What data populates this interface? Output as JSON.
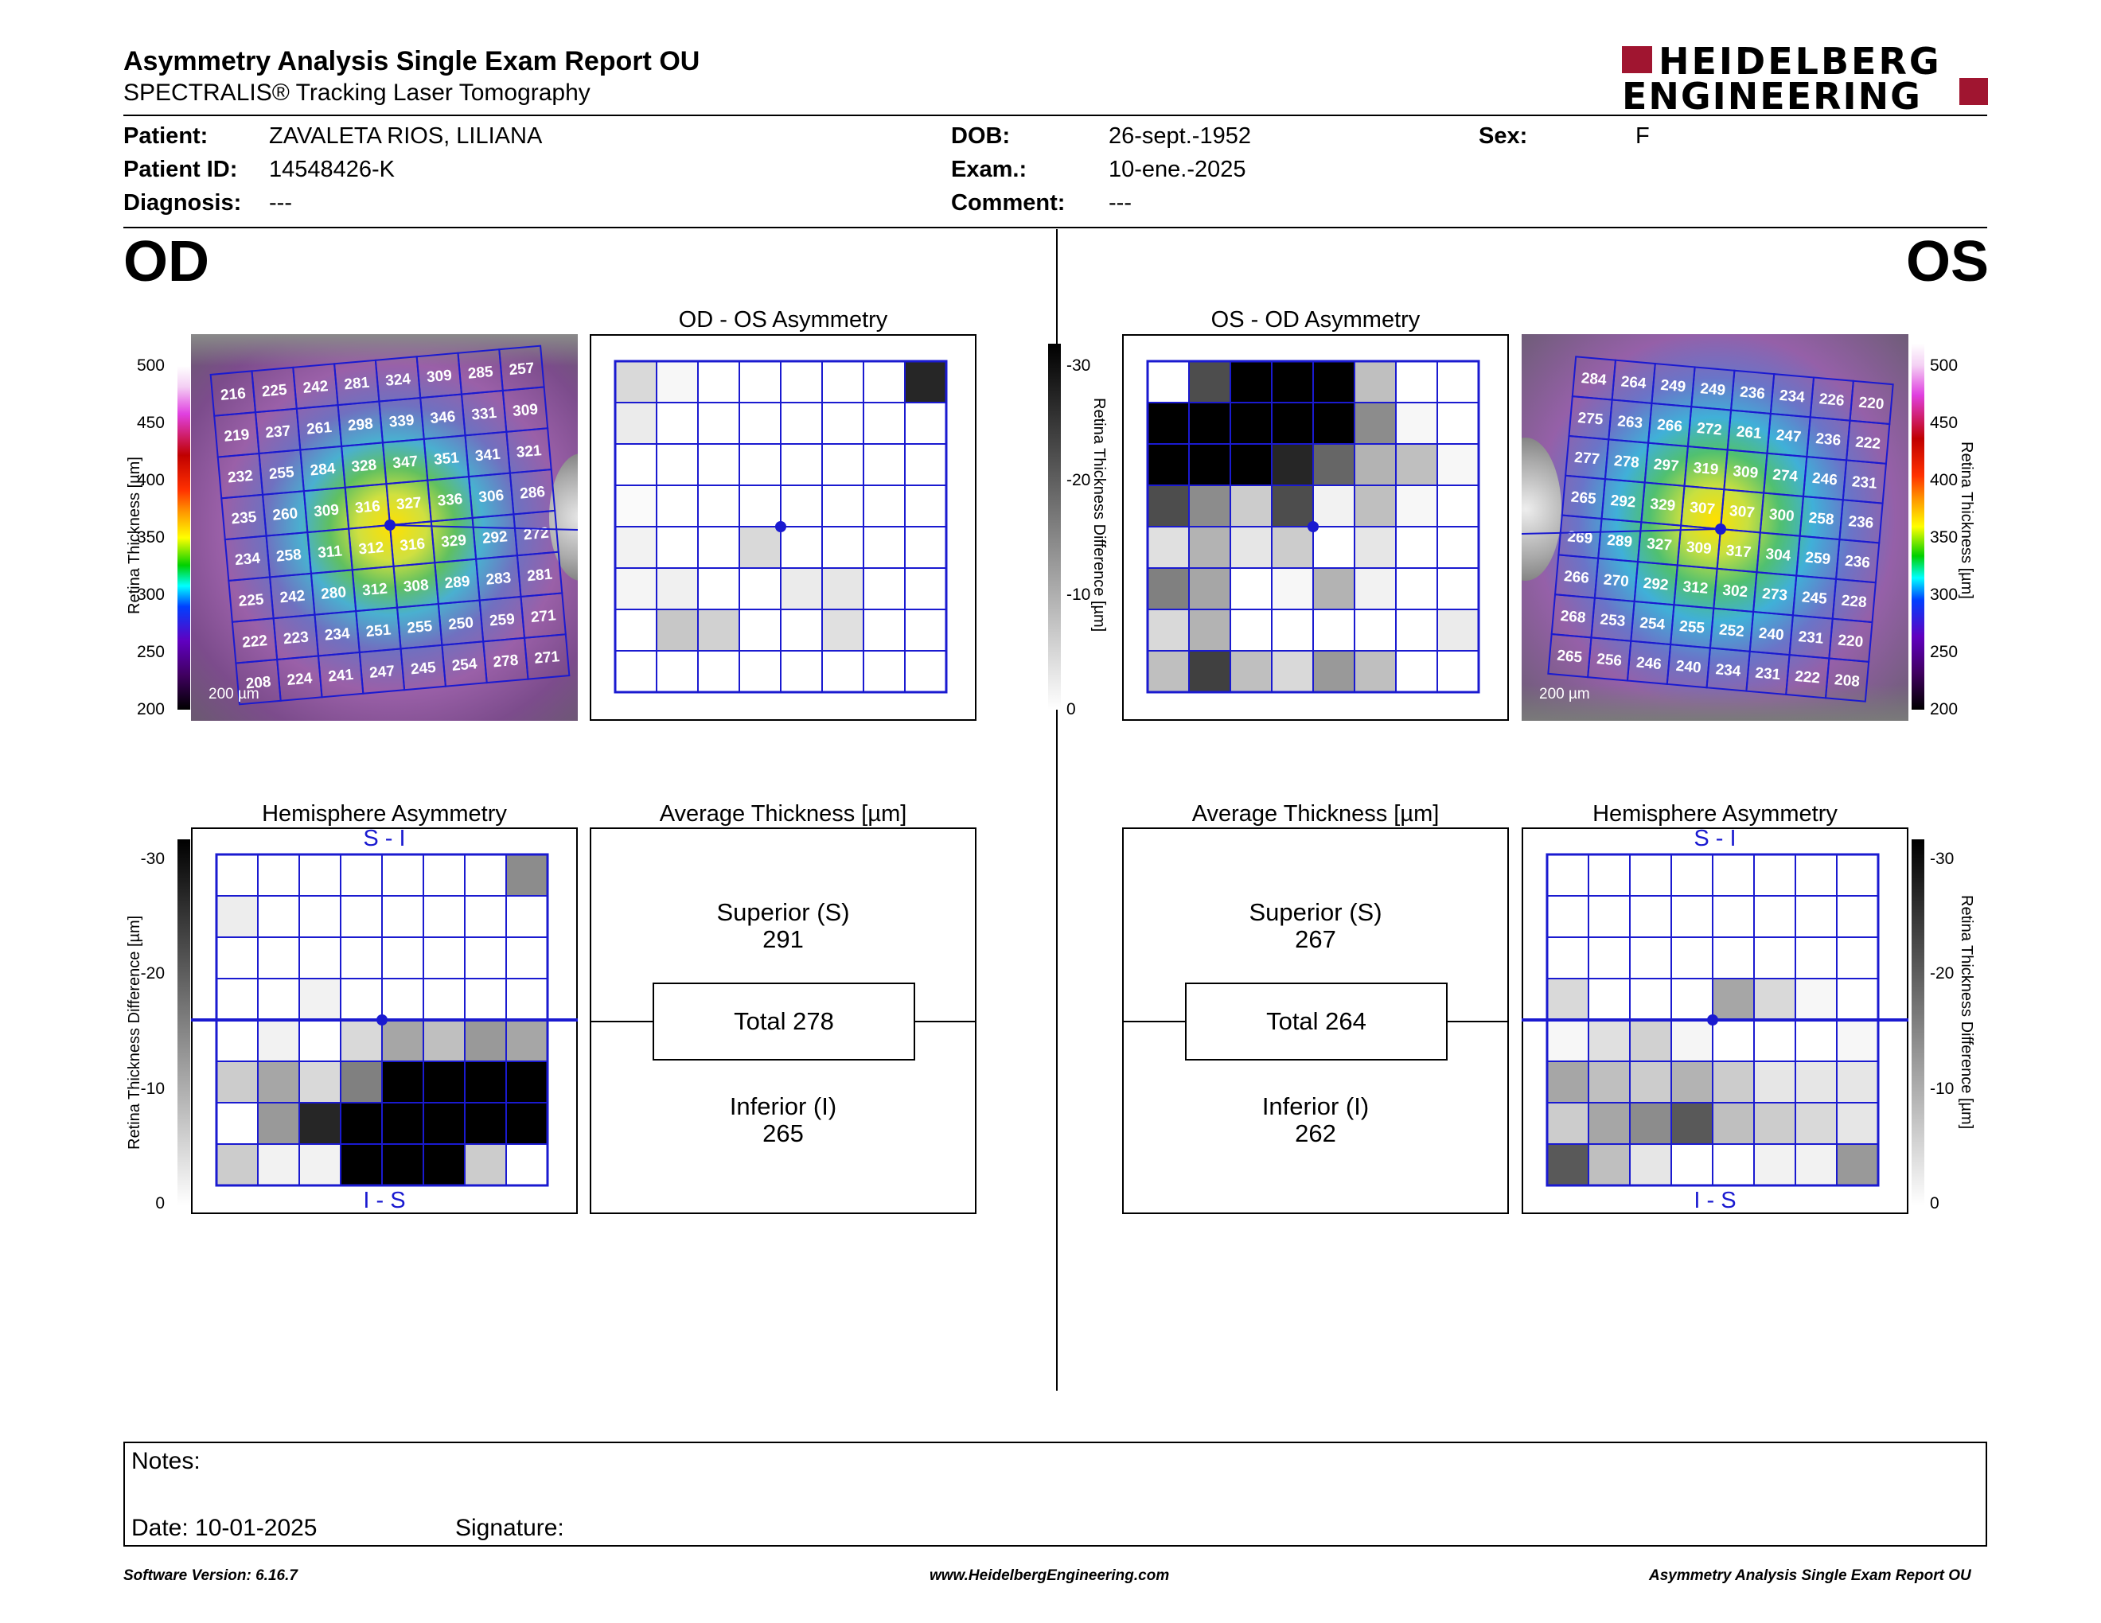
{
  "header": {
    "title": "Asymmetry Analysis Single Exam Report OU",
    "subtitle": "SPECTRALIS® Tracking Laser Tomography",
    "logo_line1": "HEIDELBERG",
    "logo_line2": "ENGINEERING",
    "logo_color": "#a01530"
  },
  "patient": {
    "patient_label": "Patient:",
    "patient_value": "ZAVALETA RIOS, LILIANA",
    "id_label": "Patient ID:",
    "id_value": "14548426-K",
    "diagnosis_label": "Diagnosis:",
    "diagnosis_value": "---",
    "dob_label": "DOB:",
    "dob_value": "26-sept.-1952",
    "exam_label": "Exam.:",
    "exam_value": "10-ene.-2025",
    "comment_label": "Comment:",
    "comment_value": "---",
    "sex_label": "Sex:",
    "sex_value": "F"
  },
  "od": {
    "eye_label": "OD",
    "asym_title": "OD - OS Asymmetry",
    "hemi_title": "Hemisphere Asymmetry",
    "avg_title": "Average Thickness [µm]",
    "superior_label": "Superior (S)",
    "superior_value": "291",
    "total_label": "Total 278",
    "inferior_label": "Inferior (I)",
    "inferior_value": "265",
    "hemi_top": "S - I",
    "hemi_bottom": "I - S",
    "scale_label": "200 µm",
    "thickness_grid": [
      [
        216,
        225,
        242,
        281,
        324,
        309,
        285,
        257
      ],
      [
        219,
        237,
        261,
        298,
        339,
        346,
        331,
        309
      ],
      [
        232,
        255,
        284,
        328,
        347,
        351,
        341,
        321
      ],
      [
        235,
        260,
        309,
        316,
        327,
        336,
        306,
        286
      ],
      [
        234,
        258,
        311,
        312,
        316,
        329,
        292,
        272
      ],
      [
        225,
        242,
        280,
        312,
        308,
        289,
        283,
        281
      ],
      [
        222,
        223,
        234,
        251,
        255,
        250,
        259,
        271
      ],
      [
        208,
        224,
        241,
        247,
        245,
        254,
        278,
        271
      ]
    ],
    "asym_grid": [
      [
        0.15,
        0.03,
        0,
        0,
        0,
        0,
        0,
        0.85
      ],
      [
        0.08,
        0,
        0,
        0,
        0,
        0,
        0,
        0
      ],
      [
        0,
        0,
        0,
        0,
        0,
        0,
        0,
        0
      ],
      [
        0.02,
        0,
        0,
        0,
        0,
        0,
        0,
        0
      ],
      [
        0.05,
        0,
        0,
        0.15,
        0,
        0,
        0,
        0
      ],
      [
        0.04,
        0.06,
        0,
        0,
        0.08,
        0.1,
        0,
        0
      ],
      [
        0,
        0.22,
        0.18,
        0,
        0,
        0.12,
        0,
        0
      ],
      [
        0,
        0,
        0,
        0,
        0,
        0,
        0,
        0
      ]
    ],
    "hemi_grid": [
      [
        0,
        0,
        0,
        0,
        0,
        0,
        0,
        0.45
      ],
      [
        0.07,
        0,
        0,
        0,
        0,
        0,
        0,
        0
      ],
      [
        0,
        0,
        0,
        0,
        0,
        0,
        0,
        0
      ],
      [
        0,
        0,
        0.05,
        0,
        0,
        0,
        0,
        0
      ],
      [
        0,
        0.05,
        0,
        0.15,
        0.35,
        0.25,
        0.4,
        0.35
      ],
      [
        0.2,
        0.35,
        0.15,
        0.5,
        1,
        1,
        1,
        1
      ],
      [
        0,
        0.4,
        0.85,
        1,
        1,
        1,
        1,
        1
      ],
      [
        0.2,
        0.05,
        0.05,
        1,
        1,
        1,
        0.2,
        0
      ]
    ]
  },
  "os": {
    "eye_label": "OS",
    "asym_title": "OS - OD Asymmetry",
    "hemi_title": "Hemisphere Asymmetry",
    "avg_title": "Average Thickness [µm]",
    "superior_label": "Superior (S)",
    "superior_value": "267",
    "total_label": "Total 264",
    "inferior_label": "Inferior (I)",
    "inferior_value": "262",
    "hemi_top": "S - I",
    "hemi_bottom": "I - S",
    "scale_label": "200 µm",
    "thickness_grid": [
      [
        284,
        264,
        249,
        249,
        236,
        234,
        226,
        220
      ],
      [
        275,
        263,
        266,
        272,
        261,
        247,
        236,
        222
      ],
      [
        277,
        278,
        297,
        319,
        309,
        274,
        246,
        231
      ],
      [
        265,
        292,
        329,
        307,
        307,
        300,
        258,
        236
      ],
      [
        269,
        289,
        327,
        309,
        317,
        304,
        259,
        236
      ],
      [
        266,
        270,
        292,
        312,
        302,
        273,
        245,
        228
      ],
      [
        268,
        253,
        254,
        255,
        252,
        240,
        231,
        220
      ],
      [
        265,
        256,
        246,
        240,
        234,
        231,
        222,
        208
      ]
    ],
    "asym_grid": [
      [
        0,
        0.7,
        1,
        1,
        1,
        0.25,
        0,
        0
      ],
      [
        1,
        1,
        1,
        1,
        1,
        0.45,
        0.03,
        0
      ],
      [
        1,
        1,
        1,
        0.85,
        0.6,
        0.3,
        0.25,
        0.03
      ],
      [
        0.7,
        0.45,
        0.2,
        0.7,
        0.05,
        0.25,
        0.03,
        0
      ],
      [
        0.12,
        0.3,
        0.1,
        0.2,
        0,
        0.1,
        0,
        0
      ],
      [
        0.5,
        0.35,
        0,
        0.03,
        0.3,
        0.05,
        0,
        0
      ],
      [
        0.15,
        0.3,
        0,
        0,
        0,
        0,
        0,
        0.08
      ],
      [
        0.25,
        0.75,
        0.25,
        0.15,
        0.4,
        0.25,
        0,
        0
      ]
    ],
    "hemi_grid": [
      [
        0,
        0,
        0,
        0,
        0,
        0,
        0,
        0
      ],
      [
        0,
        0,
        0,
        0,
        0,
        0,
        0,
        0
      ],
      [
        0,
        0,
        0,
        0,
        0,
        0,
        0,
        0
      ],
      [
        0.15,
        0,
        0,
        0,
        0.35,
        0.15,
        0.03,
        0
      ],
      [
        0.03,
        0.12,
        0.18,
        0.04,
        0,
        0,
        0,
        0.03
      ],
      [
        0.35,
        0.25,
        0.2,
        0.3,
        0.2,
        0.1,
        0.1,
        0.1
      ],
      [
        0.2,
        0.35,
        0.45,
        0.65,
        0.25,
        0.2,
        0.15,
        0.1
      ],
      [
        0.65,
        0.25,
        0.1,
        0,
        0,
        0.05,
        0.05,
        0.4
      ]
    ]
  },
  "scales": {
    "thickness_label": "Retina Thickness [µm]",
    "thickness_ticks": [
      "500",
      "450",
      "400",
      "350",
      "300",
      "250",
      "200"
    ],
    "diff_label": "Retina Thickness Difference [µm]",
    "diff_ticks": [
      "-30",
      "-20",
      "-10",
      "0"
    ]
  },
  "notes": {
    "notes_label": "Notes:",
    "date_label": "Date: 10-01-2025",
    "signature_label": "Signature:"
  },
  "footer": {
    "version": "Software Version: 6.16.7",
    "website": "www.HeidelbergEngineering.com",
    "report": "Asymmetry Analysis Single Exam Report OU"
  }
}
